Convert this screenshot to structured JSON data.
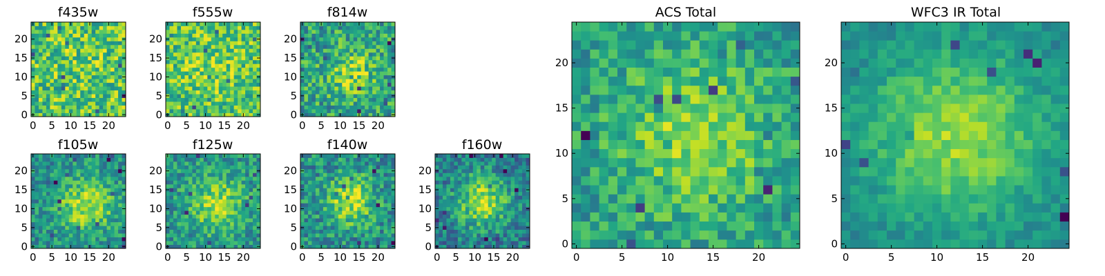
{
  "chart_data": [
    {
      "type": "heatmap",
      "title": "f435w",
      "grid_size": 25,
      "x_ticks": [
        0,
        5,
        10,
        15,
        20
      ],
      "y_ticks": [
        0,
        5,
        10,
        15,
        20
      ],
      "xlim": [
        -0.5,
        24.5
      ],
      "ylim": [
        -0.5,
        24.5
      ],
      "colormap": "viridis",
      "value_range": [
        0,
        1
      ],
      "profile": {
        "cx": 12,
        "cy": 12,
        "sigma": 5,
        "amp": 0.05,
        "base": 0.72,
        "noise": 0.26,
        "seed": 11
      }
    },
    {
      "type": "heatmap",
      "title": "f555w",
      "grid_size": 25,
      "x_ticks": [
        0,
        5,
        10,
        15,
        20
      ],
      "y_ticks": [
        0,
        5,
        10,
        15,
        20
      ],
      "xlim": [
        -0.5,
        24.5
      ],
      "ylim": [
        -0.5,
        24.5
      ],
      "colormap": "viridis",
      "value_range": [
        0,
        1
      ],
      "profile": {
        "cx": 12,
        "cy": 12,
        "sigma": 5,
        "amp": 0.1,
        "base": 0.72,
        "noise": 0.24,
        "seed": 23
      }
    },
    {
      "type": "heatmap",
      "title": "f814w",
      "grid_size": 25,
      "x_ticks": [
        0,
        5,
        10,
        15,
        20
      ],
      "y_ticks": [
        0,
        5,
        10,
        15,
        20
      ],
      "xlim": [
        -0.5,
        24.5
      ],
      "ylim": [
        -0.5,
        24.5
      ],
      "colormap": "viridis",
      "value_range": [
        0,
        1
      ],
      "profile": {
        "cx": 13,
        "cy": 11,
        "sigma": 4,
        "amp": 0.3,
        "base": 0.58,
        "noise": 0.25,
        "seed": 37
      }
    },
    {
      "type": "heatmap",
      "title": "f105w",
      "grid_size": 25,
      "x_ticks": [
        0,
        5,
        10,
        15,
        20
      ],
      "y_ticks": [
        0,
        5,
        10,
        15,
        20
      ],
      "xlim": [
        -0.5,
        24.5
      ],
      "ylim": [
        -0.5,
        24.5
      ],
      "colormap": "viridis",
      "value_range": [
        0,
        1
      ],
      "profile": {
        "cx": 14,
        "cy": 11,
        "sigma": 5,
        "amp": 0.4,
        "base": 0.5,
        "noise": 0.2,
        "seed": 41
      }
    },
    {
      "type": "heatmap",
      "title": "f125w",
      "grid_size": 25,
      "x_ticks": [
        0,
        5,
        10,
        15,
        20
      ],
      "y_ticks": [
        0,
        5,
        10,
        15,
        20
      ],
      "xlim": [
        -0.5,
        24.5
      ],
      "ylim": [
        -0.5,
        24.5
      ],
      "colormap": "viridis",
      "value_range": [
        0,
        1
      ],
      "profile": {
        "cx": 13,
        "cy": 11,
        "sigma": 5,
        "amp": 0.35,
        "base": 0.52,
        "noise": 0.2,
        "seed": 53
      }
    },
    {
      "type": "heatmap",
      "title": "f140w",
      "grid_size": 25,
      "x_ticks": [
        0,
        5,
        10,
        15,
        20
      ],
      "y_ticks": [
        0,
        5,
        10,
        15,
        20
      ],
      "xlim": [
        -0.5,
        24.5
      ],
      "ylim": [
        -0.5,
        24.5
      ],
      "colormap": "viridis",
      "value_range": [
        0,
        1
      ],
      "profile": {
        "cx": 13,
        "cy": 12,
        "sigma": 4.5,
        "amp": 0.4,
        "base": 0.5,
        "noise": 0.22,
        "seed": 67
      }
    },
    {
      "type": "heatmap",
      "title": "f160w",
      "grid_size": 25,
      "x_ticks": [
        0,
        5,
        10,
        15,
        20
      ],
      "y_ticks": [
        0,
        5,
        10,
        15,
        20
      ],
      "xlim": [
        -0.5,
        24.5
      ],
      "ylim": [
        -0.5,
        24.5
      ],
      "colormap": "viridis",
      "value_range": [
        0,
        1
      ],
      "profile": {
        "cx": 12,
        "cy": 12,
        "sigma": 5,
        "amp": 0.45,
        "base": 0.42,
        "noise": 0.2,
        "seed": 79
      }
    },
    {
      "type": "heatmap",
      "title": "ACS Total",
      "grid_size": 25,
      "x_ticks": [
        0,
        5,
        10,
        15,
        20
      ],
      "y_ticks": [
        0,
        5,
        10,
        15,
        20
      ],
      "xlim": [
        -0.5,
        24.5
      ],
      "ylim": [
        -0.5,
        24.5
      ],
      "colormap": "viridis",
      "value_range": [
        0,
        1
      ],
      "profile": {
        "cx": 13,
        "cy": 12,
        "sigma": 6,
        "amp": 0.3,
        "base": 0.55,
        "noise": 0.18,
        "seed": 97
      }
    },
    {
      "type": "heatmap",
      "title": "WFC3 IR Total",
      "grid_size": 25,
      "x_ticks": [
        0,
        5,
        10,
        15,
        20
      ],
      "y_ticks": [
        0,
        5,
        10,
        15,
        20
      ],
      "xlim": [
        -0.5,
        24.5
      ],
      "ylim": [
        -0.5,
        24.5
      ],
      "colormap": "viridis",
      "value_range": [
        0,
        1
      ],
      "profile": {
        "cx": 12,
        "cy": 12,
        "sigma": 7,
        "amp": 0.4,
        "base": 0.45,
        "noise": 0.1,
        "seed": 113
      }
    }
  ],
  "colors": {
    "background": "#ffffff",
    "axis": "#000000"
  }
}
